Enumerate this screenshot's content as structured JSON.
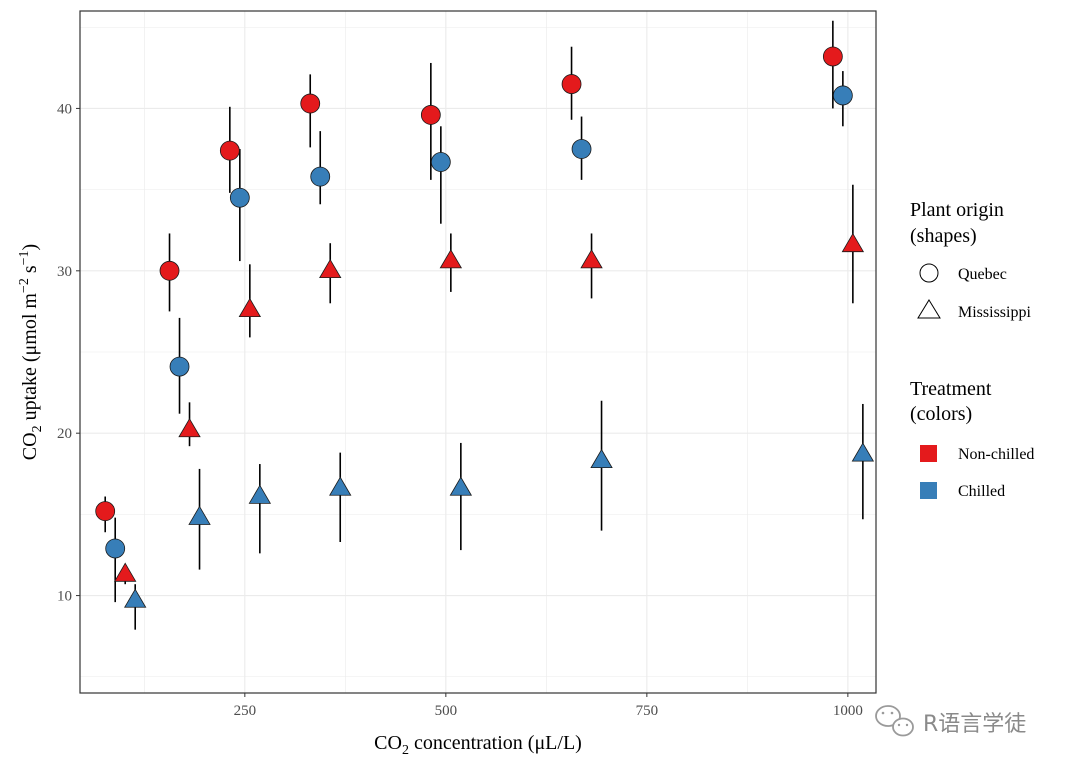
{
  "chart_data": {
    "type": "scatter",
    "xlabel": {
      "prefix": "CO",
      "sub": "2",
      "suffix": " concentration (μL/L)"
    },
    "ylabel": {
      "prefix": "CO",
      "sub": "2",
      "suffix": " uptake (μmol m",
      "sup1": "−2",
      "mid": " s",
      "sup2": "−1",
      "end": ")"
    },
    "xlim": [
      45,
      1035
    ],
    "ylim": [
      4,
      46
    ],
    "x_ticks": [
      250,
      500,
      750,
      1000
    ],
    "y_ticks": [
      10,
      20,
      30,
      40
    ],
    "grid": true,
    "legend_position": "right",
    "legend_shape": {
      "title_line1": "Plant origin",
      "title_line2": "(shapes)",
      "items": [
        {
          "label": "Quebec",
          "shape": "circle"
        },
        {
          "label": "Mississippi",
          "shape": "triangle"
        }
      ]
    },
    "legend_color": {
      "title_line1": "Treatment",
      "title_line2": "(colors)",
      "items": [
        {
          "label": "Non-chilled",
          "color": "#e41a1c"
        },
        {
          "label": "Chilled",
          "color": "#377eb8"
        }
      ]
    },
    "series": [
      {
        "name": "Quebec Non-chilled",
        "shape": "circle",
        "color": "#e41a1c",
        "points": [
          {
            "x": 95,
            "y": 15.2,
            "lo": 13.9,
            "hi": 16.1
          },
          {
            "x": 175,
            "y": 30.0,
            "lo": 27.5,
            "hi": 32.3
          },
          {
            "x": 250,
            "y": 37.4,
            "lo": 34.8,
            "hi": 40.1
          },
          {
            "x": 350,
            "y": 40.3,
            "lo": 37.6,
            "hi": 42.1
          },
          {
            "x": 500,
            "y": 39.6,
            "lo": 35.6,
            "hi": 42.8
          },
          {
            "x": 675,
            "y": 41.5,
            "lo": 39.3,
            "hi": 43.8
          },
          {
            "x": 1000,
            "y": 43.2,
            "lo": 40.0,
            "hi": 45.4
          }
        ]
      },
      {
        "name": "Quebec Chilled",
        "shape": "circle",
        "color": "#377eb8",
        "points": [
          {
            "x": 95,
            "y": 12.9,
            "lo": 9.6,
            "hi": 14.8
          },
          {
            "x": 175,
            "y": 24.1,
            "lo": 21.2,
            "hi": 27.1
          },
          {
            "x": 250,
            "y": 34.5,
            "lo": 30.6,
            "hi": 37.5
          },
          {
            "x": 350,
            "y": 35.8,
            "lo": 34.1,
            "hi": 38.6
          },
          {
            "x": 500,
            "y": 36.7,
            "lo": 32.9,
            "hi": 38.9
          },
          {
            "x": 675,
            "y": 37.5,
            "lo": 35.6,
            "hi": 39.5
          },
          {
            "x": 1000,
            "y": 40.8,
            "lo": 38.9,
            "hi": 42.3
          }
        ]
      },
      {
        "name": "Mississippi Non-chilled",
        "shape": "triangle",
        "color": "#e41a1c",
        "points": [
          {
            "x": 95,
            "y": 11.3,
            "lo": 10.7,
            "hi": 11.9
          },
          {
            "x": 175,
            "y": 20.2,
            "lo": 19.2,
            "hi": 21.9
          },
          {
            "x": 250,
            "y": 27.6,
            "lo": 25.9,
            "hi": 30.4
          },
          {
            "x": 350,
            "y": 30.0,
            "lo": 28.0,
            "hi": 31.7
          },
          {
            "x": 500,
            "y": 30.6,
            "lo": 28.7,
            "hi": 32.3
          },
          {
            "x": 675,
            "y": 30.6,
            "lo": 28.3,
            "hi": 32.3
          },
          {
            "x": 1000,
            "y": 31.6,
            "lo": 28.0,
            "hi": 35.3
          }
        ]
      },
      {
        "name": "Mississippi Chilled",
        "shape": "triangle",
        "color": "#377eb8",
        "points": [
          {
            "x": 95,
            "y": 9.7,
            "lo": 7.9,
            "hi": 10.7
          },
          {
            "x": 175,
            "y": 14.8,
            "lo": 11.6,
            "hi": 17.8
          },
          {
            "x": 250,
            "y": 16.1,
            "lo": 12.6,
            "hi": 18.1
          },
          {
            "x": 350,
            "y": 16.6,
            "lo": 13.3,
            "hi": 18.8
          },
          {
            "x": 500,
            "y": 16.6,
            "lo": 12.8,
            "hi": 19.4
          },
          {
            "x": 675,
            "y": 18.3,
            "lo": 14.0,
            "hi": 22.0
          },
          {
            "x": 1000,
            "y": 18.7,
            "lo": 14.7,
            "hi": 21.8
          }
        ]
      }
    ],
    "dodge": {
      "Quebec Non-chilled": -15,
      "Quebec Chilled": -5,
      "Mississippi Non-chilled": 5,
      "Mississippi Chilled": 15
    }
  },
  "watermark": {
    "icon": "wechat-icon",
    "text": "R语言学徒"
  }
}
